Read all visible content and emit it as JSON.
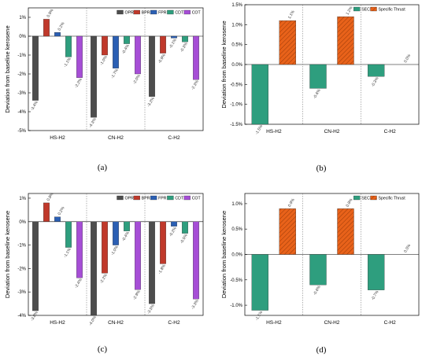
{
  "colors": {
    "OPR": "#4d4d4d",
    "BPR": "#c0392b",
    "FPR": "#2b5fb3",
    "CDT": "#2e9e7e",
    "COT": "#a64ed6",
    "SEC": "#2e9e7e",
    "Specific Thrust": "#e8621a"
  },
  "chart_data": [
    {
      "caption": "(a)",
      "type": "bar",
      "ylabel": "Deviation from baseline kerosene",
      "categories": [
        "HS-H2",
        "CN-H2",
        "C-H2"
      ],
      "ylim": [
        -5,
        1.5
      ],
      "yticks": [
        -5,
        -4,
        -3,
        -2,
        -1,
        0,
        1
      ],
      "ytick_labels": [
        "-5%",
        "-4%",
        "-3%",
        "-2%",
        "-1%",
        "0%",
        "1%"
      ],
      "legend_position": "top-right",
      "series": [
        {
          "name": "OPR",
          "values": [
            -3.4,
            -4.3,
            -3.2
          ],
          "labels": [
            "-3.4%",
            "-4.3%",
            "-3.2%"
          ]
        },
        {
          "name": "BPR",
          "values": [
            0.9,
            -1.0,
            -0.9
          ],
          "labels": [
            "0.9%",
            "-1.0%",
            "-0.9%"
          ]
        },
        {
          "name": "FPR",
          "values": [
            0.2,
            -1.7,
            -0.1
          ],
          "labels": [
            "0.2%",
            "-1.7%",
            "-0.1%"
          ]
        },
        {
          "name": "CDT",
          "values": [
            -1.1,
            -0.4,
            -0.3
          ],
          "labels": [
            "-1.1%",
            "-0.4%",
            "-0.3%"
          ]
        },
        {
          "name": "COT",
          "values": [
            -2.2,
            -2.0,
            -2.3
          ],
          "labels": [
            "-2.2%",
            "-2.0%",
            "-2.3%"
          ]
        }
      ]
    },
    {
      "caption": "(b)",
      "type": "bar",
      "ylabel": "Deviation from baseline kerosene",
      "categories": [
        "HS-H2",
        "CN-H2",
        "C-H2"
      ],
      "ylim": [
        -1.5,
        1.5
      ],
      "yticks": [
        -1.5,
        -1.0,
        -0.5,
        0,
        0.5,
        1.0,
        1.5
      ],
      "ytick_labels": [
        "-1.5%",
        "-1.0%",
        "-0.5%",
        "0.0%",
        "0.5%",
        "1.0%",
        "1.5%"
      ],
      "legend_position": "top-right",
      "series": [
        {
          "name": "SEC",
          "values": [
            -1.5,
            -0.6,
            -0.3
          ],
          "labels": [
            "-1.5%",
            "-0.6%",
            "-0.3%"
          ]
        },
        {
          "name": "Specific Thrust",
          "values": [
            1.1,
            1.2,
            0.0
          ],
          "labels": [
            "1.1%",
            "1.2%",
            "0.0%"
          ]
        }
      ]
    },
    {
      "caption": "(c)",
      "type": "bar",
      "ylabel": "Deviation from baseline kerosene",
      "categories": [
        "HS-H2",
        "CN-H2",
        "C-H2"
      ],
      "ylim": [
        -4,
        1.2
      ],
      "yticks": [
        -4,
        -3,
        -2,
        -1,
        0,
        1
      ],
      "ytick_labels": [
        "-4%",
        "-3%",
        "-2%",
        "-1%",
        "0%",
        "1%"
      ],
      "legend_position": "top-right",
      "series": [
        {
          "name": "OPR",
          "values": [
            -3.8,
            -4.0,
            -3.5
          ],
          "labels": [
            "-3.8%",
            "-4.0%",
            "-3.5%"
          ]
        },
        {
          "name": "BPR",
          "values": [
            0.8,
            -2.2,
            -1.8
          ],
          "labels": [
            "0.8%",
            "-2.2%",
            "-1.8%"
          ]
        },
        {
          "name": "FPR",
          "values": [
            0.2,
            -1.0,
            -0.2
          ],
          "labels": [
            "0.2%",
            "-1.0%",
            "-0.2%"
          ]
        },
        {
          "name": "CDT",
          "values": [
            -1.1,
            -0.4,
            -0.5
          ],
          "labels": [
            "-1.1%",
            "-0.4%",
            "-0.5%"
          ]
        },
        {
          "name": "COT",
          "values": [
            -2.4,
            -2.9,
            -3.3
          ],
          "labels": [
            "-2.4%",
            "-2.9%",
            "-3.3%"
          ]
        }
      ]
    },
    {
      "caption": "(d)",
      "type": "bar",
      "ylabel": "Deviation from baseline kerosene",
      "categories": [
        "HS-H2",
        "CN-H2",
        "C-H2"
      ],
      "ylim": [
        -1.2,
        1.2
      ],
      "yticks": [
        -1.0,
        -0.5,
        0,
        0.5,
        1.0
      ],
      "ytick_labels": [
        "-1.0%",
        "-0.5%",
        "0.0%",
        "0.5%",
        "1.0%"
      ],
      "legend_position": "top-right",
      "series": [
        {
          "name": "SEC",
          "values": [
            -1.1,
            -0.6,
            -0.7
          ],
          "labels": [
            "-1.1%",
            "-0.6%",
            "-0.7%"
          ]
        },
        {
          "name": "Specific Thrust",
          "values": [
            0.9,
            0.9,
            0.0
          ],
          "labels": [
            "0.9%",
            "0.9%",
            "0.0%"
          ]
        }
      ]
    }
  ]
}
